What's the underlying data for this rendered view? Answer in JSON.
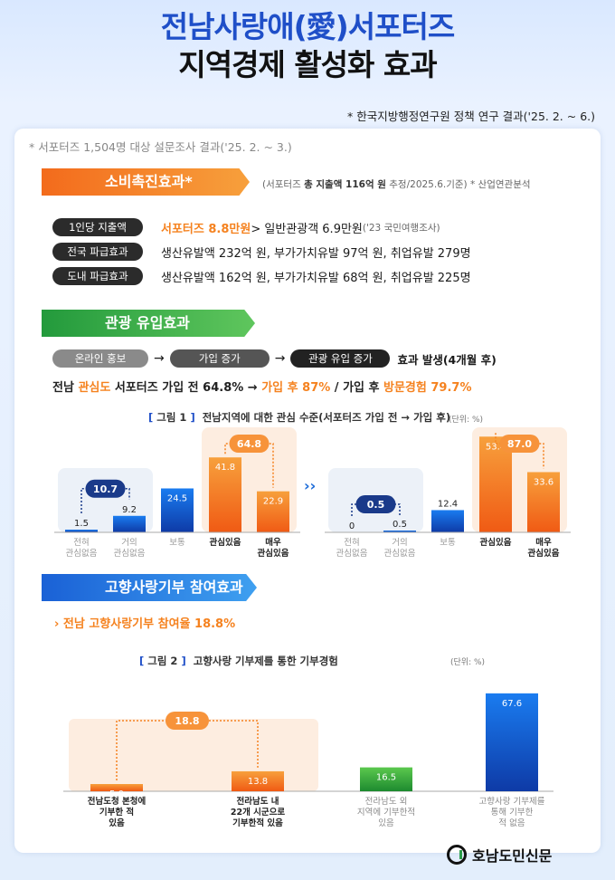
{
  "header": {
    "title_a": "전남사랑애",
    "title_paren": "(愛)",
    "title_b": "서포터즈",
    "subtitle": "지역경제 활성화 효과",
    "source": "* 한국지방행정연구원 정책 연구 결과('25. 2. ~ 6.)"
  },
  "survey_note": "* 서포터즈 1,504명 대상 설문조사 결과('25. 2. ~ 3.)",
  "section1": {
    "title": "소비촉진효과*",
    "note_a": "(서포터즈 ",
    "note_b": "총 지출액 116억 원",
    "note_c": " 추정/2025.6.기준) * 산업연관분석",
    "rows": [
      {
        "label": "1인당 지출액",
        "hl": "서포터즈 8.8만원",
        "text": " > 일반관광객 6.9만원 ",
        "small": "('23 국민여행조사)"
      },
      {
        "label": "전국 파급효과",
        "text": "생산유발액 232억 원, 부가가치유발 97억 원, 취업유발 279명"
      },
      {
        "label": "도내 파급효과",
        "text": "생산유발액 162억 원, 부가가치유발 68억 원, 취업유발 225명"
      }
    ]
  },
  "section2": {
    "title": "관광 유입효과",
    "flow": [
      "온라인 홍보",
      "가입 증가",
      "관광 유입 증가"
    ],
    "flow_arrow": "→",
    "flow_result": "효과 발생(4개월 후)",
    "line_a": "전남 ",
    "line_b": "관심도",
    "line_c": " 서포터즈 가입 전 64.8% → ",
    "line_d": "가입 후 87%",
    "line_e": " / 가입 후 ",
    "line_f": "방문경험 79.7%"
  },
  "fig1": {
    "label": "그림 1",
    "title": "전남지역에 대한 관심 수준(서포터즈 가입 전 → 가입 후)",
    "unit": "(단위: %)"
  },
  "section3": {
    "title": "고향사랑기부 참여효과",
    "line_a": "› 전남 고향사랑기부 참여율 ",
    "line_b": "18.8%"
  },
  "fig2": {
    "label": "그림 2",
    "title": "고향사랑 기부제를 통한 기부경험",
    "unit": "(단위: %)"
  },
  "logo": "호남도민신문",
  "chart_data": [
    {
      "type": "bar",
      "title": "가입 전",
      "categories": [
        "전혀 관심없음",
        "거의 관심없음",
        "보통",
        "관심있음",
        "매우 관심있음"
      ],
      "values": [
        1.5,
        9.2,
        24.5,
        41.8,
        22.9
      ],
      "group_totals": [
        {
          "categories": [
            0,
            1
          ],
          "value": 10.7
        },
        {
          "categories": [
            3,
            4
          ],
          "value": 64.8
        }
      ],
      "colors": [
        "#1f6fe0",
        "#1f6fe0",
        "#1f6fe0",
        "#f5821f",
        "#f5821f"
      ]
    },
    {
      "type": "bar",
      "title": "가입 후",
      "categories": [
        "전혀 관심없음",
        "거의 관심없음",
        "보통",
        "관심있음",
        "매우 관심있음"
      ],
      "values": [
        0,
        0.5,
        12.4,
        53.4,
        33.6
      ],
      "group_totals": [
        {
          "categories": [
            0,
            1
          ],
          "value": 0.5
        },
        {
          "categories": [
            3,
            4
          ],
          "value": 87.0
        }
      ],
      "colors": [
        "#1f6fe0",
        "#1f6fe0",
        "#1f6fe0",
        "#f5821f",
        "#f5821f"
      ]
    },
    {
      "type": "bar",
      "title": "고향사랑 기부제를 통한 기부경험",
      "categories": [
        "전남도청 본청에 기부한 적 있음",
        "전라남도 내 22개 시군으로 기부한적 있음",
        "전라남도 외 지역에 기부한적 있음",
        "고향사랑 기부제를 통해 기부한 적 없음"
      ],
      "values": [
        5.0,
        13.8,
        16.5,
        67.6
      ],
      "group_totals": [
        {
          "categories": [
            0,
            1
          ],
          "value": 18.8
        }
      ],
      "colors": [
        "#f5821f",
        "#f5821f",
        "#27a23b",
        "#1f6fe0"
      ]
    }
  ]
}
